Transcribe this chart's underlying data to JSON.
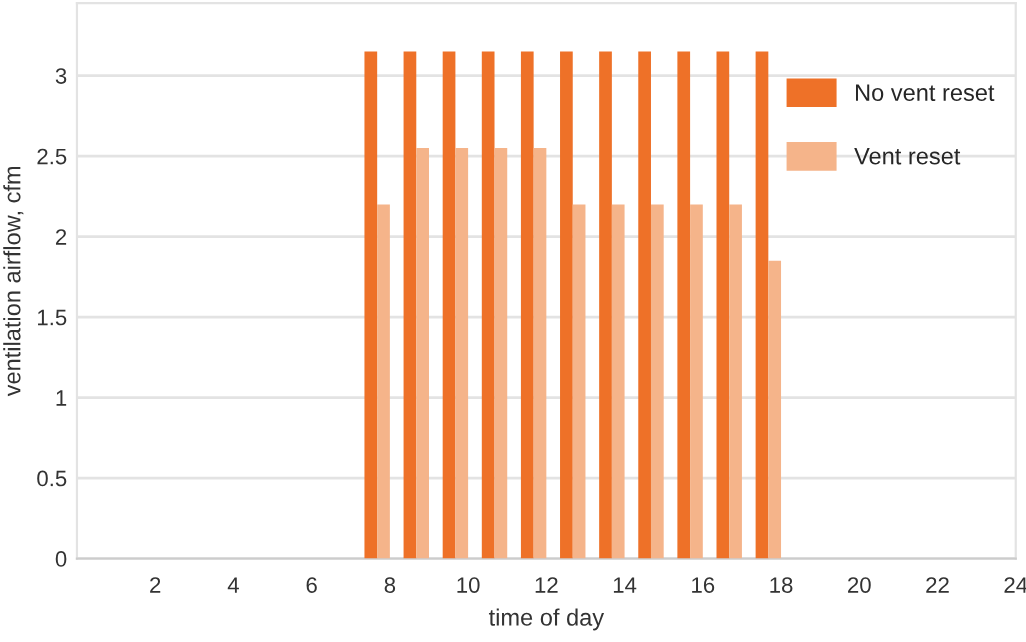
{
  "chart_data": {
    "type": "bar",
    "xlabel": "time of day",
    "ylabel": "ventilation airflow, cfm",
    "x": [
      8,
      9,
      10,
      11,
      12,
      13,
      14,
      15,
      16,
      17,
      18
    ],
    "series": [
      {
        "name": "No vent reset",
        "color": "#ee7128",
        "values": [
          3.15,
          3.15,
          3.15,
          3.15,
          3.15,
          3.15,
          3.15,
          3.15,
          3.15,
          3.15,
          3.15
        ]
      },
      {
        "name": "Vent reset",
        "color": "#f5b48a",
        "values": [
          2.2,
          2.55,
          2.55,
          2.55,
          2.55,
          2.2,
          2.2,
          2.2,
          2.2,
          2.2,
          1.85
        ]
      }
    ],
    "xlim": [
      0,
      24
    ],
    "xticks": [
      2,
      4,
      6,
      8,
      10,
      12,
      14,
      16,
      18,
      20,
      22,
      24
    ],
    "ylim": [
      0,
      3.45
    ],
    "yticks": [
      0,
      0.5,
      1,
      1.5,
      2,
      2.5,
      3
    ],
    "grid": "y",
    "legend": "top right"
  }
}
